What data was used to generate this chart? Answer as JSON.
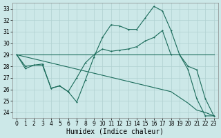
{
  "background_color": "#cce8e8",
  "grid_color": "#b0d0d0",
  "line_color": "#1a6b5a",
  "xlabel": "Humidex (Indice chaleur)",
  "xlabel_fontsize": 7,
  "tick_fontsize": 5.5,
  "xlim": [
    -0.5,
    23.5
  ],
  "ylim": [
    23.5,
    33.5
  ],
  "yticks": [
    24,
    25,
    26,
    27,
    28,
    29,
    30,
    31,
    32,
    33
  ],
  "xticks": [
    0,
    1,
    2,
    3,
    4,
    5,
    6,
    7,
    8,
    9,
    10,
    11,
    12,
    13,
    14,
    15,
    16,
    17,
    18,
    19,
    20,
    21,
    22,
    23
  ],
  "line1_x": [
    0,
    1,
    2,
    3,
    4,
    5,
    6,
    7,
    8,
    9,
    10,
    11,
    12,
    13,
    14,
    15,
    16,
    17,
    18,
    19,
    20,
    21,
    22,
    23
  ],
  "line1_y": [
    29.0,
    27.8,
    28.1,
    28.1,
    26.1,
    26.3,
    25.8,
    24.9,
    26.8,
    28.8,
    30.5,
    31.6,
    31.5,
    31.2,
    31.2,
    32.2,
    33.2,
    32.8,
    31.1,
    29.0,
    27.7,
    25.2,
    23.7,
    23.7
  ],
  "line2_x": [
    0,
    1,
    2,
    3,
    4,
    5,
    6,
    7,
    8,
    9,
    10,
    11,
    12,
    13,
    14,
    15,
    16,
    17,
    18,
    19,
    20,
    21,
    22,
    23
  ],
  "line2_y": [
    29.0,
    28.0,
    28.1,
    28.2,
    26.1,
    26.3,
    25.8,
    27.0,
    28.3,
    29.0,
    29.5,
    29.3,
    29.4,
    29.5,
    29.7,
    30.2,
    30.5,
    31.1,
    29.0,
    29.0,
    28.0,
    27.7,
    25.2,
    23.7
  ],
  "line3_x": [
    0,
    18,
    23
  ],
  "line3_y": [
    29.0,
    29.0,
    29.0
  ],
  "line4_x": [
    0,
    18,
    20,
    21,
    22,
    23
  ],
  "line4_y": [
    29.0,
    25.8,
    24.8,
    24.2,
    24.0,
    23.7
  ]
}
